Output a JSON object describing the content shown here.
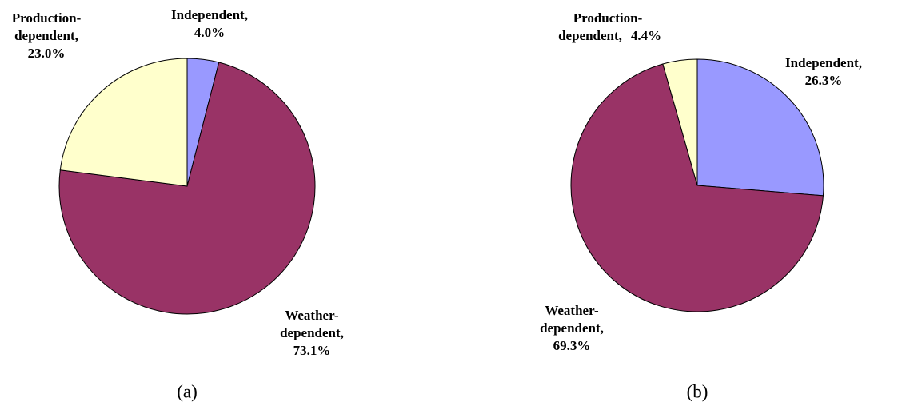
{
  "chart_data": [
    {
      "type": "pie",
      "caption": "(a)",
      "categories": [
        "Independent,",
        "Weather-dependent,",
        "Production-dependent,"
      ],
      "values": [
        4.0,
        73.1,
        23.0
      ],
      "value_labels": [
        "4.0%",
        "73.1%",
        "23.0%"
      ],
      "colors": [
        "#9999ff",
        "#993366",
        "#ffffcc"
      ]
    },
    {
      "type": "pie",
      "caption": "(b)",
      "categories": [
        "Independent,",
        "Weather-dependent,",
        "Production-dependent,"
      ],
      "values": [
        26.3,
        69.3,
        4.4
      ],
      "value_labels": [
        "26.3%",
        "69.3%",
        "4.4%"
      ],
      "colors": [
        "#9999ff",
        "#993366",
        "#ffffcc"
      ]
    }
  ]
}
